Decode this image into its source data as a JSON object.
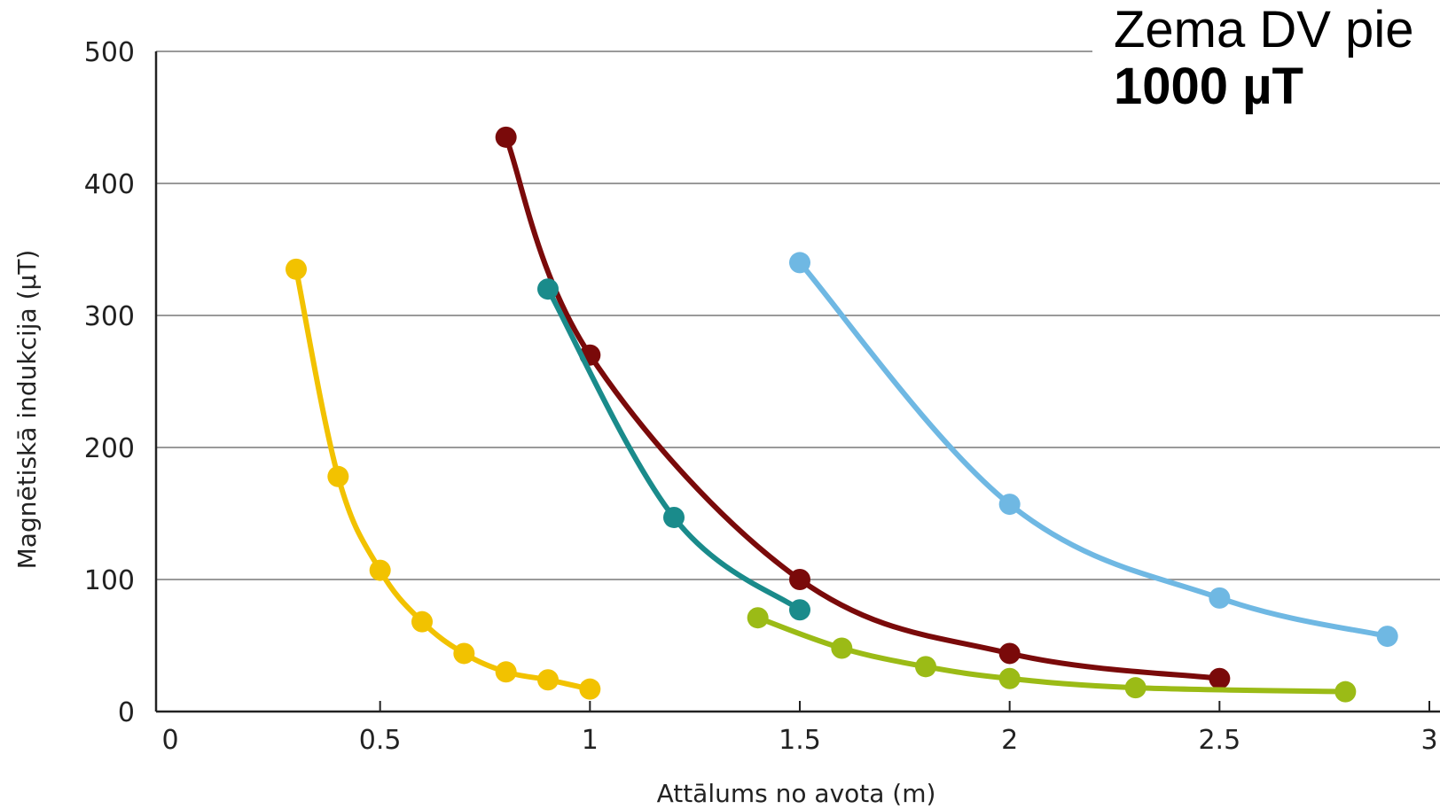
{
  "annotation": {
    "line1": "Zema DV pie",
    "line2": "1000 µT"
  },
  "chart_data": {
    "type": "line",
    "xlabel": "Attālums no avota (m)",
    "ylabel": "Magnētiskā indukcija (µT)",
    "xlim": [
      0,
      3
    ],
    "ylim": [
      0,
      500
    ],
    "x_ticks": [
      0,
      0.5,
      1,
      1.5,
      2,
      2.5,
      3
    ],
    "x_tick_labels": [
      "0",
      "0.5",
      "1",
      "1.5",
      "2",
      "2.5",
      "3"
    ],
    "y_ticks": [
      0,
      100,
      200,
      300,
      400,
      500
    ],
    "y_tick_labels": [
      "0",
      "100",
      "200",
      "300",
      "400",
      "500"
    ],
    "grid": "horizontal",
    "series": [
      {
        "color": "#f2c200",
        "x": [
          0.3,
          0.4,
          0.5,
          0.6,
          0.7,
          0.8,
          0.9,
          1.0
        ],
        "y": [
          335,
          178,
          107,
          68,
          44,
          30,
          24,
          17
        ]
      },
      {
        "color": "#7a0a0a",
        "x": [
          0.8,
          1.0,
          1.5,
          2.0,
          2.5
        ],
        "y": [
          435,
          270,
          100,
          44,
          25
        ]
      },
      {
        "color": "#1a8b8b",
        "x": [
          0.9,
          1.2,
          1.5
        ],
        "y": [
          320,
          147,
          77
        ]
      },
      {
        "color": "#9bbb16",
        "x": [
          1.4,
          1.6,
          1.8,
          2.0,
          2.3,
          2.8
        ],
        "y": [
          71,
          48,
          34,
          25,
          18,
          15
        ]
      },
      {
        "color": "#6fb8e3",
        "x": [
          1.5,
          2.0,
          2.5,
          2.9
        ],
        "y": [
          340,
          157,
          86,
          57
        ]
      }
    ]
  }
}
